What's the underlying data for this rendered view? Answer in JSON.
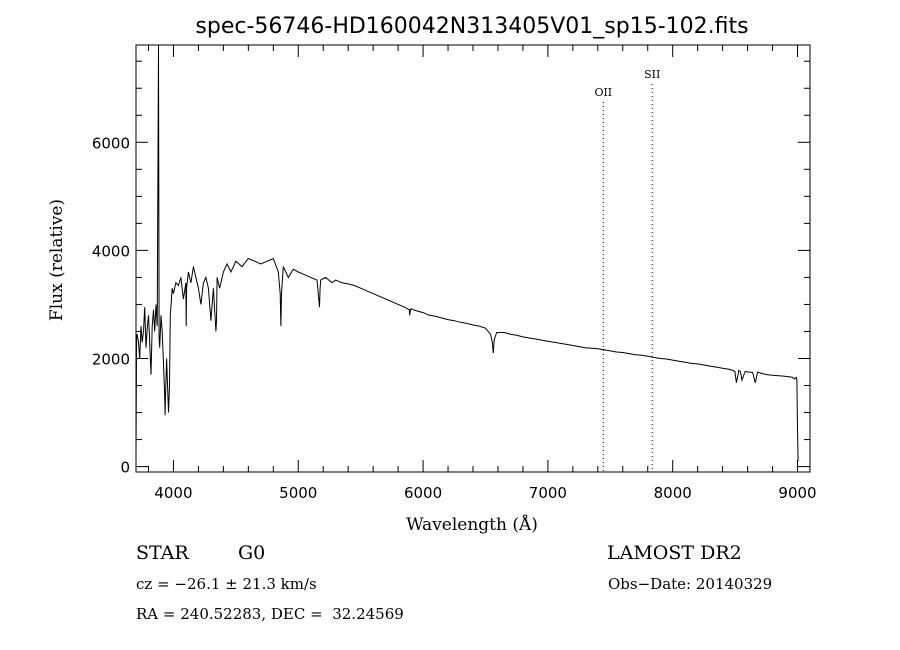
{
  "chart_data": {
    "type": "line",
    "title": "spec-56746-HD160042N313405V01_sp15-102.fits",
    "xlabel": "Wavelength (Å)",
    "ylabel": "Flux (relative)",
    "xlim": [
      3700,
      9100
    ],
    "ylim": [
      -100,
      7800
    ],
    "grid": false,
    "x_ticks": [
      4000,
      5000,
      6000,
      7000,
      8000,
      9000
    ],
    "x_tick_labels": [
      "4000",
      "5000",
      "6000",
      "7000",
      "8000",
      "9000"
    ],
    "y_ticks": [
      0,
      2000,
      4000,
      6000
    ],
    "y_tick_labels": [
      "0",
      "2000",
      "4000",
      "6000"
    ],
    "series": [
      {
        "x": [
          3700,
          3705,
          3710,
          3720,
          3730,
          3740,
          3750,
          3760,
          3770,
          3780,
          3790,
          3800,
          3810,
          3820,
          3830,
          3840,
          3850,
          3860,
          3870,
          3880,
          3885,
          3890,
          3900,
          3910,
          3920,
          3930,
          3933,
          3936,
          3945,
          3960,
          3968,
          3975,
          3990,
          4000,
          4020,
          4040,
          4060,
          4080,
          4100,
          4102,
          4105,
          4120,
          4140,
          4160,
          4180,
          4200,
          4220,
          4240,
          4260,
          4280,
          4300,
          4320,
          4340,
          4345,
          4350,
          4370,
          4400,
          4430,
          4460,
          4500,
          4550,
          4600,
          4650,
          4700,
          4750,
          4800,
          4840,
          4855,
          4861,
          4866,
          4880,
          4920,
          4960,
          5000,
          5050,
          5100,
          5150,
          5170,
          5175,
          5180,
          5220,
          5270,
          5300,
          5350,
          5400,
          5450,
          5500,
          5550,
          5600,
          5650,
          5700,
          5750,
          5800,
          5850,
          5890,
          5893,
          5900,
          5950,
          6000,
          6050,
          6100,
          6150,
          6200,
          6250,
          6300,
          6350,
          6400,
          6450,
          6500,
          6540,
          6555,
          6563,
          6570,
          6590,
          6650,
          6700,
          6750,
          6800,
          6850,
          6900,
          6950,
          7000,
          7050,
          7100,
          7150,
          7200,
          7250,
          7300,
          7350,
          7400,
          7450,
          7500,
          7550,
          7600,
          7650,
          7700,
          7750,
          7800,
          7850,
          7900,
          7950,
          8000,
          8050,
          8100,
          8150,
          8200,
          8250,
          8300,
          8350,
          8400,
          8450,
          8480,
          8498,
          8510,
          8530,
          8542,
          8555,
          8580,
          8640,
          8662,
          8680,
          8720,
          8760,
          8800,
          8850,
          8900,
          8940,
          8960,
          8975,
          8990,
          8995,
          9000,
          9005
        ],
        "y": [
          200,
          2400,
          2450,
          2300,
          2000,
          2600,
          2300,
          2500,
          2950,
          2200,
          2550,
          2800,
          2300,
          1700,
          2600,
          2900,
          2500,
          3000,
          2600,
          7800,
          2400,
          2200,
          2800,
          2500,
          1900,
          1300,
          950,
          1300,
          2000,
          1000,
          1500,
          2800,
          3300,
          3200,
          3400,
          3350,
          3500,
          3100,
          3400,
          2600,
          3300,
          3600,
          3400,
          3700,
          3500,
          3300,
          3000,
          3400,
          3500,
          3300,
          2700,
          3300,
          2500,
          2700,
          3500,
          3300,
          3600,
          3750,
          3600,
          3800,
          3700,
          3850,
          3800,
          3750,
          3800,
          3850,
          3600,
          3200,
          2600,
          3200,
          3700,
          3500,
          3650,
          3600,
          3550,
          3500,
          3450,
          2950,
          3300,
          3450,
          3500,
          3400,
          3450,
          3400,
          3380,
          3350,
          3300,
          3250,
          3200,
          3150,
          3100,
          3050,
          3000,
          2950,
          2900,
          2800,
          2920,
          2880,
          2850,
          2800,
          2780,
          2750,
          2720,
          2700,
          2670,
          2650,
          2620,
          2600,
          2560,
          2450,
          2300,
          2100,
          2350,
          2480,
          2480,
          2450,
          2430,
          2400,
          2380,
          2360,
          2340,
          2320,
          2300,
          2280,
          2260,
          2240,
          2220,
          2200,
          2190,
          2180,
          2160,
          2140,
          2120,
          2110,
          2090,
          2070,
          2060,
          2040,
          2020,
          2000,
          1990,
          1970,
          1950,
          1930,
          1910,
          1900,
          1880,
          1860,
          1840,
          1820,
          1800,
          1780,
          1760,
          1550,
          1780,
          1760,
          1600,
          1760,
          1740,
          1550,
          1750,
          1720,
          1700,
          1690,
          1680,
          1670,
          1660,
          1650,
          1620,
          1650,
          1600,
          700,
          100
        ]
      }
    ],
    "markers": [
      {
        "label": "OII",
        "x": 7444
      },
      {
        "label": "SII",
        "x": 7836
      }
    ]
  },
  "info": {
    "object_class": "STAR",
    "subclass": "G0",
    "survey": "LAMOST DR2",
    "cz": "cz = −26.1 ± 21.3 km/s",
    "obs_date": "Obs−Date: 20140329",
    "coords": "RA = 240.52283, DEC =  32.24569"
  }
}
